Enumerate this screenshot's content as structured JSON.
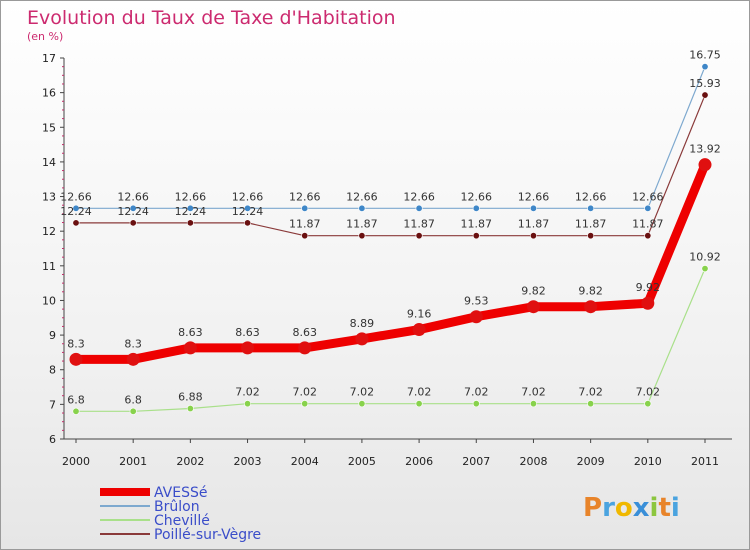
{
  "chart_data": {
    "type": "line",
    "title": "Evolution du Taux de Taxe d'Habitation",
    "ylabel": "(en %)",
    "xlabel": "",
    "categories": [
      "2000",
      "2001",
      "2002",
      "2003",
      "2004",
      "2005",
      "2006",
      "2007",
      "2008",
      "2009",
      "2010",
      "2011"
    ],
    "ylim": [
      6,
      17
    ],
    "yticks": [
      "6",
      "7",
      "8",
      "9",
      "10",
      "11",
      "12",
      "13",
      "14",
      "15",
      "16",
      "17"
    ],
    "series": [
      {
        "name": "AVESSé",
        "color": "#ee0000",
        "marker_color": "#e01010",
        "emphasis": "thick",
        "values": [
          8.3,
          8.3,
          8.63,
          8.63,
          8.63,
          8.89,
          9.16,
          9.53,
          9.82,
          9.82,
          9.92,
          13.92
        ],
        "labels": [
          "8.3",
          "8.3",
          "8.63",
          "8.63",
          "8.63",
          "8.89",
          "9.16",
          "9.53",
          "9.82",
          "9.82",
          "9.92",
          "13.92"
        ]
      },
      {
        "name": "Brûlon",
        "color": "#7ea9cf",
        "marker_color": "#3f87c8",
        "emphasis": "thin",
        "values": [
          12.66,
          12.66,
          12.66,
          12.66,
          12.66,
          12.66,
          12.66,
          12.66,
          12.66,
          12.66,
          12.66,
          16.75
        ],
        "labels": [
          "12.66",
          "12.66",
          "12.66",
          "12.66",
          "12.66",
          "12.66",
          "12.66",
          "12.66",
          "12.66",
          "12.66",
          "12.66",
          "16.75"
        ]
      },
      {
        "name": "Chevillé",
        "color": "#a9e08a",
        "marker_color": "#88d24c",
        "emphasis": "thin",
        "values": [
          6.8,
          6.8,
          6.88,
          7.02,
          7.02,
          7.02,
          7.02,
          7.02,
          7.02,
          7.02,
          7.02,
          10.92
        ],
        "labels": [
          "6.8",
          "6.8",
          "6.88",
          "7.02",
          "7.02",
          "7.02",
          "7.02",
          "7.02",
          "7.02",
          "7.02",
          "7.02",
          "10.92"
        ]
      },
      {
        "name": "Poillé-sur-Vègre",
        "color": "#8a3a3a",
        "marker_color": "#6a1010",
        "emphasis": "thin",
        "values": [
          12.24,
          12.24,
          12.24,
          12.24,
          11.87,
          11.87,
          11.87,
          11.87,
          11.87,
          11.87,
          11.87,
          15.93
        ],
        "labels": [
          "12.24",
          "12.24",
          "12.24",
          "12.24",
          "11.87",
          "11.87",
          "11.87",
          "11.87",
          "11.87",
          "11.87",
          "11.87",
          "15.93"
        ]
      }
    ],
    "legend_position": "bottom-left",
    "grid": false
  },
  "branding": {
    "logo_text": "Proxiti"
  }
}
